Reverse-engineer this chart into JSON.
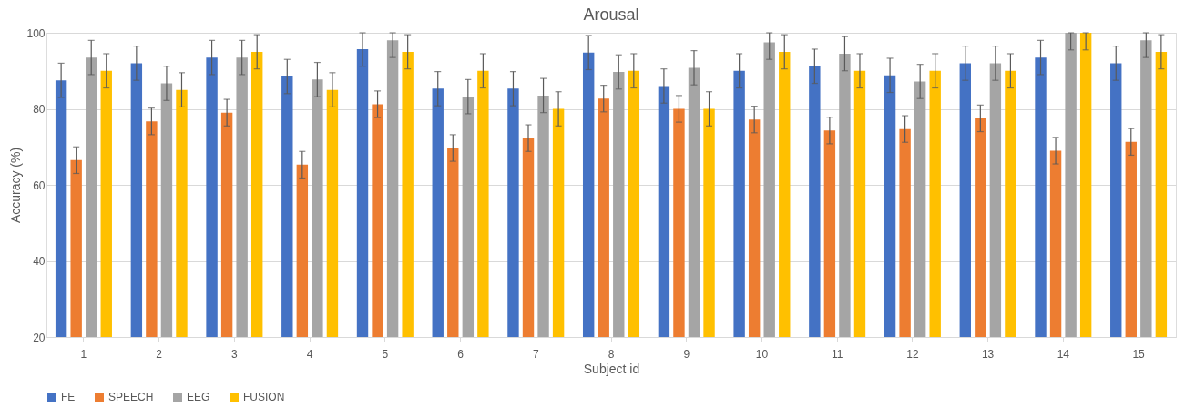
{
  "chart_data": {
    "type": "bar",
    "title": "Arousal",
    "xlabel": "Subject id",
    "ylabel": "Accuracy (%)",
    "categories": [
      "1",
      "2",
      "3",
      "4",
      "5",
      "6",
      "7",
      "8",
      "9",
      "10",
      "11",
      "12",
      "13",
      "14",
      "15"
    ],
    "series": [
      {
        "name": "FE",
        "color": "#4472c4",
        "values": [
          87.5,
          92,
          93.5,
          88.5,
          95.7,
          85.3,
          85.3,
          94.8,
          86,
          90,
          91.2,
          88.8,
          92,
          93.5,
          92
        ],
        "errors": [
          4.5,
          4.5,
          4.5,
          4.5,
          [
            91.2,
            100
          ],
          4.5,
          4.5,
          4.5,
          4.5,
          4.5,
          4.5,
          4.5,
          4.5,
          4.5,
          4.5
        ]
      },
      {
        "name": "SPEECH",
        "color": "#ed7d31",
        "values": [
          66.5,
          76.7,
          79,
          65.3,
          81.2,
          69.7,
          72.3,
          82.7,
          80,
          77.2,
          74.3,
          74.7,
          77.5,
          69,
          71.3
        ],
        "errors": [
          3.5,
          3.5,
          3.5,
          3.5,
          3.5,
          3.5,
          3.5,
          3.5,
          3.5,
          3.5,
          3.5,
          3.5,
          3.5,
          3.5,
          3.5
        ]
      },
      {
        "name": "EEG",
        "color": "#a5a5a5",
        "values": [
          93.5,
          86.7,
          93.5,
          87.7,
          98,
          83.2,
          83.5,
          89.7,
          90.8,
          97.5,
          94.5,
          87.2,
          92,
          100,
          98
        ],
        "errors": [
          4.5,
          4.5,
          4.5,
          4.5,
          [
            93.5,
            100
          ],
          4.5,
          4.5,
          4.5,
          4.5,
          [
            93,
            100
          ],
          4.5,
          4.5,
          4.5,
          [
            95.5,
            100
          ],
          [
            93.5,
            100
          ]
        ]
      },
      {
        "name": "FUSION",
        "color": "#ffc000",
        "values": [
          90,
          85,
          95,
          85,
          95,
          90,
          80,
          90,
          80,
          95,
          90,
          90,
          90,
          100,
          95
        ],
        "errors": [
          4.5,
          4.5,
          4.5,
          4.5,
          4.5,
          4.5,
          4.5,
          4.5,
          4.5,
          4.5,
          4.5,
          4.5,
          4.5,
          [
            95.5,
            100
          ],
          4.5
        ]
      }
    ],
    "ylim": [
      20,
      100
    ],
    "yticks": [
      20,
      40,
      60,
      80,
      100
    ],
    "grid": "y",
    "legend": "bottom"
  }
}
